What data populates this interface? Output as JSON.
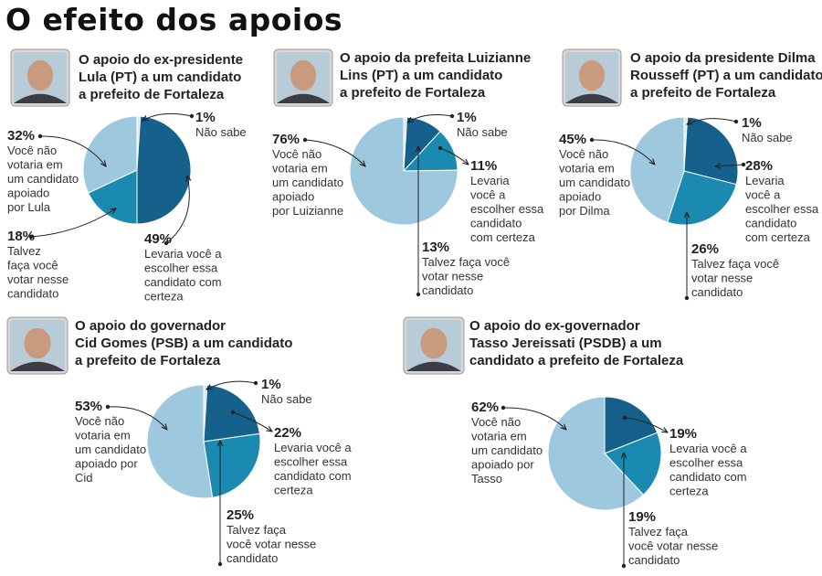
{
  "title": "O efeito dos apoios",
  "colors": {
    "light": "#9ec8de",
    "medium": "#1a8ab0",
    "dark": "#15618c",
    "tiny": "#d8e8f0"
  },
  "chart_data": [
    {
      "type": "pie",
      "heading": [
        "O apoio do ex-presidente",
        "Lula (PT) a um candidato",
        "a prefeito de Fortaleza"
      ],
      "portrait": "lula-portrait",
      "slices": [
        {
          "value": 1,
          "pct": "1%",
          "label": [
            "Não sabe"
          ],
          "color": "tiny"
        },
        {
          "value": 49,
          "pct": "49%",
          "label": [
            "Levaria você a",
            "escolher essa",
            "candidato com",
            "certeza"
          ],
          "color": "dark"
        },
        {
          "value": 18,
          "pct": "18%",
          "label": [
            "Talvez",
            "faça você",
            "votar nesse",
            "candidato"
          ],
          "color": "medium"
        },
        {
          "value": 32,
          "pct": "32%",
          "label": [
            "Você não",
            "votaria em",
            "um candidato",
            "apoiado",
            "por Lula"
          ],
          "color": "light"
        }
      ]
    },
    {
      "type": "pie",
      "heading": [
        "O apoio da prefeita Luizianne",
        "Lins (PT) a um candidato",
        "a prefeito de Fortaleza"
      ],
      "portrait": "luizianne-portrait",
      "slices": [
        {
          "value": 1,
          "pct": "1%",
          "label": [
            "Não sabe"
          ],
          "color": "tiny"
        },
        {
          "value": 11,
          "pct": "11%",
          "label": [
            "Levaria",
            "você a",
            "escolher essa",
            "candidato",
            "com certeza"
          ],
          "color": "dark"
        },
        {
          "value": 13,
          "pct": "13%",
          "label": [
            "Talvez faça você",
            "votar nesse",
            "candidato"
          ],
          "color": "medium"
        },
        {
          "value": 76,
          "pct": "76%",
          "label": [
            "Você não",
            "votaria em",
            "um candidato",
            "apoiado",
            "por Luizianne"
          ],
          "color": "light"
        }
      ]
    },
    {
      "type": "pie",
      "heading": [
        "O apoio da presidente  Dilma",
        "Rousseff (PT) a um candidato",
        "a prefeito de Fortaleza"
      ],
      "portrait": "dilma-portrait",
      "slices": [
        {
          "value": 1,
          "pct": "1%",
          "label": [
            "Não sabe"
          ],
          "color": "tiny"
        },
        {
          "value": 28,
          "pct": "28%",
          "label": [
            "Levaria",
            "você a",
            "escolher essa",
            "candidato",
            "com certeza"
          ],
          "color": "dark"
        },
        {
          "value": 26,
          "pct": "26%",
          "label": [
            "Talvez faça você",
            "votar nesse",
            "candidato"
          ],
          "color": "medium"
        },
        {
          "value": 45,
          "pct": "45%",
          "label": [
            "Você não",
            "votaria em",
            "um candidato",
            "apoiado",
            "por Dilma"
          ],
          "color": "light"
        }
      ]
    },
    {
      "type": "pie",
      "heading": [
        "O apoio do governador",
        "Cid Gomes (PSB) a um candidato",
        "a prefeito de Fortaleza"
      ],
      "portrait": "cid-portrait",
      "slices": [
        {
          "value": 1,
          "pct": "1%",
          "label": [
            "Não sabe"
          ],
          "color": "tiny"
        },
        {
          "value": 22,
          "pct": "22%",
          "label": [
            "Levaria você a",
            "escolher essa",
            "candidato com",
            "certeza"
          ],
          "color": "dark"
        },
        {
          "value": 25,
          "pct": "25%",
          "label": [
            "Talvez faça",
            "você votar nesse",
            "candidato"
          ],
          "color": "medium"
        },
        {
          "value": 53,
          "pct": "53%",
          "label": [
            "Você não",
            "votaria em",
            "um candidato",
            "apoiado por",
            "Cid"
          ],
          "color": "light"
        }
      ]
    },
    {
      "type": "pie",
      "heading": [
        "O apoio do ex-governador",
        "Tasso Jereissati (PSDB) a um",
        "candidato a prefeito de Fortaleza"
      ],
      "portrait": "tasso-portrait",
      "slices": [
        {
          "value": 19,
          "pct": "19%",
          "label": [
            "Levaria você a",
            "escolher essa",
            "candidato com",
            "certeza"
          ],
          "color": "dark"
        },
        {
          "value": 19,
          "pct": "19%",
          "label": [
            "Talvez faça",
            "você votar nesse",
            "candidato"
          ],
          "color": "medium"
        },
        {
          "value": 62,
          "pct": "62%",
          "label": [
            "Você não",
            "votaria em",
            "um candidato",
            "apoiado por",
            "Tasso"
          ],
          "color": "light"
        }
      ]
    }
  ]
}
